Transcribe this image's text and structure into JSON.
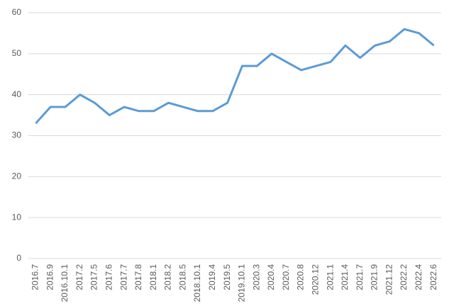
{
  "chart_data": {
    "type": "line",
    "categories": [
      "2016.7",
      "2016.9",
      "2016.10.1",
      "2017.2",
      "2017.5",
      "2017.6",
      "2017.7",
      "2017.8",
      "2018.1",
      "2018.2",
      "2018.5",
      "2018.10.1",
      "2019.4",
      "2019.5",
      "2019.10.1",
      "2020.3",
      "2020.4",
      "2020.7",
      "2020.8",
      "2020.12",
      "2021.1",
      "2021.4",
      "2021.7",
      "2021.9",
      "2021.12",
      "2022.2",
      "2022.4",
      "2022.6"
    ],
    "values": [
      33,
      37,
      37,
      40,
      38,
      35,
      37,
      36,
      36,
      38,
      37,
      36,
      36,
      38,
      47,
      47,
      50,
      48,
      46,
      47,
      48,
      52,
      49,
      52,
      53,
      56,
      55,
      52
    ],
    "color": "#5b9bd5",
    "ylim": [
      0,
      60
    ],
    "yticks": [
      0,
      10,
      20,
      30,
      40,
      50,
      60
    ],
    "grid": true
  }
}
